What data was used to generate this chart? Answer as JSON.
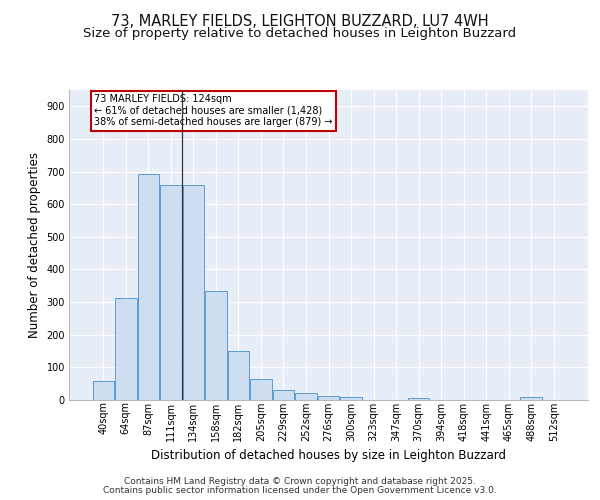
{
  "title_line1": "73, MARLEY FIELDS, LEIGHTON BUZZARD, LU7 4WH",
  "title_line2": "Size of property relative to detached houses in Leighton Buzzard",
  "xlabel": "Distribution of detached houses by size in Leighton Buzzard",
  "ylabel": "Number of detached properties",
  "categories": [
    "40sqm",
    "64sqm",
    "87sqm",
    "111sqm",
    "134sqm",
    "158sqm",
    "182sqm",
    "205sqm",
    "229sqm",
    "252sqm",
    "276sqm",
    "300sqm",
    "323sqm",
    "347sqm",
    "370sqm",
    "394sqm",
    "418sqm",
    "441sqm",
    "465sqm",
    "488sqm",
    "512sqm"
  ],
  "values": [
    57,
    312,
    693,
    659,
    659,
    335,
    150,
    65,
    30,
    20,
    13,
    10,
    0,
    0,
    5,
    0,
    0,
    0,
    0,
    8,
    0
  ],
  "bar_color": "#cfddf0",
  "bar_edge_color": "#5b9bd5",
  "annotation_title": "73 MARLEY FIELDS: 124sqm",
  "annotation_line2": "← 61% of detached houses are smaller (1,428)",
  "annotation_line3": "38% of semi-detached houses are larger (879) →",
  "annotation_box_color": "#ffffff",
  "annotation_box_edge": "#c00000",
  "footer_line1": "Contains HM Land Registry data © Crown copyright and database right 2025.",
  "footer_line2": "Contains public sector information licensed under the Open Government Licence v3.0.",
  "ylim": [
    0,
    950
  ],
  "yticks": [
    0,
    100,
    200,
    300,
    400,
    500,
    600,
    700,
    800,
    900
  ],
  "background_color": "#e8eef8",
  "grid_color": "#ffffff",
  "title_fontsize": 10.5,
  "subtitle_fontsize": 9.5,
  "axis_label_fontsize": 8.5,
  "tick_fontsize": 7,
  "footer_fontsize": 6.5,
  "ylabel_fontsize": 8.5
}
